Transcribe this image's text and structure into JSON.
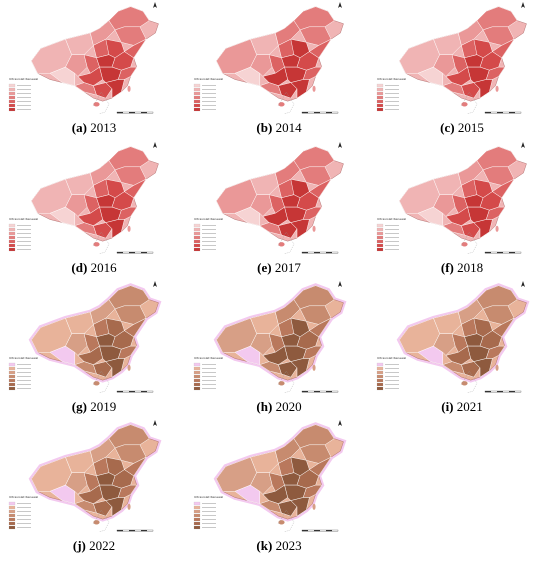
{
  "panels": [
    {
      "letter": "(a)",
      "year": "2013",
      "scheme": "red",
      "legend_title": "Ultraviolet Renewal"
    },
    {
      "letter": "(b)",
      "year": "2014",
      "scheme": "red",
      "legend_title": "Ultraviolet Renewal"
    },
    {
      "letter": "(c)",
      "year": "2015",
      "scheme": "red",
      "legend_title": "Ultraviolet Renewal"
    },
    {
      "letter": "(d)",
      "year": "2016",
      "scheme": "red",
      "legend_title": "Ultraviolet Renewal"
    },
    {
      "letter": "(e)",
      "year": "2017",
      "scheme": "red",
      "legend_title": "Ultraviolet Renewal"
    },
    {
      "letter": "(f)",
      "year": "2018",
      "scheme": "red",
      "legend_title": "Ultraviolet Renewal"
    },
    {
      "letter": "(g)",
      "year": "2019",
      "scheme": "mixed",
      "legend_title": "Ultraviolet Renewal"
    },
    {
      "letter": "(h)",
      "year": "2020",
      "scheme": "mixed",
      "legend_title": "Ultraviolet Renewal"
    },
    {
      "letter": "(i)",
      "year": "2021",
      "scheme": "mixed",
      "legend_title": "Ultraviolet Renewal"
    },
    {
      "letter": "(j)",
      "year": "2022",
      "scheme": "mixed",
      "legend_title": "Ultraviolet Renewal"
    },
    {
      "letter": "(k)",
      "year": "2023",
      "scheme": "mixed",
      "legend_title": "Ultraviolet Renewal"
    }
  ],
  "colors": {
    "red_scale": [
      "#f6d3d3",
      "#f0b4b4",
      "#ea9898",
      "#e37c7c",
      "#dc6262",
      "#d44a4a",
      "#c63636"
    ],
    "mixed_scale": [
      "#f3c9ef",
      "#e8b39a",
      "#d79f86",
      "#c78b6f",
      "#b9785c",
      "#a76a4d",
      "#8e5a3e"
    ]
  }
}
